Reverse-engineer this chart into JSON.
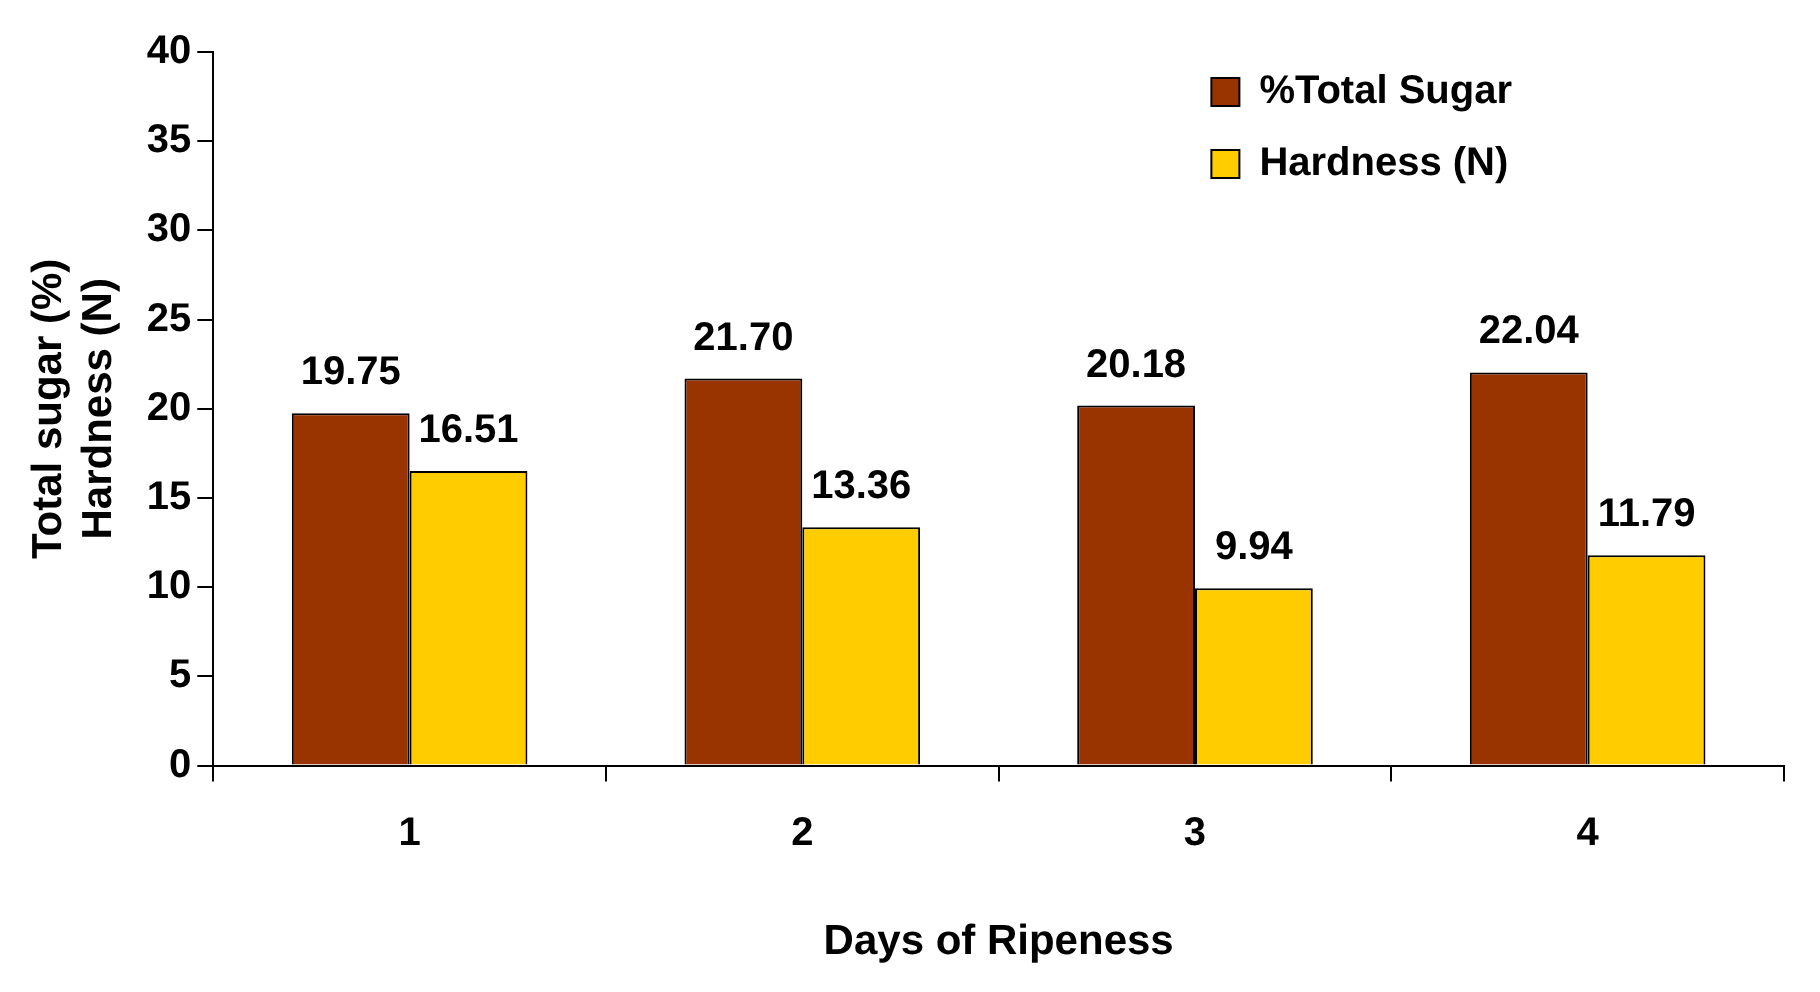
{
  "chart_data": {
    "type": "bar",
    "xlabel": "Days of Ripeness",
    "ylabel": "Total sugar (%)\nHardness (N)",
    "categories": [
      "1",
      "2",
      "3",
      "4"
    ],
    "series": [
      {
        "name": "%Total Sugar",
        "color": "#993300",
        "values": [
          19.75,
          21.7,
          20.18,
          22.04
        ],
        "value_labels": [
          "19.75",
          "21.70",
          "20.18",
          "22.04"
        ]
      },
      {
        "name": "Hardness (N)",
        "color": "#ffcc00",
        "values": [
          16.51,
          13.36,
          9.94,
          11.79
        ],
        "value_labels": [
          "16.51",
          "13.36",
          "9.94",
          "11.79"
        ]
      }
    ],
    "ylim": [
      0,
      40
    ],
    "yticks": [
      0,
      5,
      10,
      15,
      20,
      25,
      30,
      35,
      40
    ],
    "grid": false,
    "legend": "top right"
  }
}
